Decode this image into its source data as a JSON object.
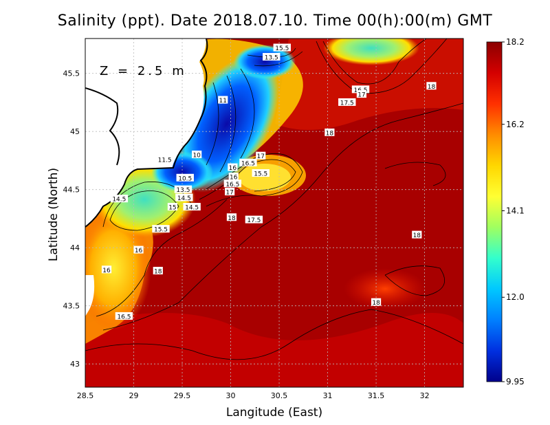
{
  "chart_data": {
    "type": "heatmap",
    "title": "Salinity (ppt). Date 2018.07.10. Time 00(h):00(m) GMT",
    "xlabel": "Langitude (East)",
    "ylabel": "Latitude (North)",
    "annotation": "Z = 2.5 m",
    "xlim": [
      28.5,
      32.4
    ],
    "ylim": [
      42.8,
      45.8
    ],
    "x_ticks": [
      "28.5",
      "29",
      "29.5",
      "30",
      "30.5",
      "31",
      "31.5",
      "32"
    ],
    "y_ticks": [
      "43",
      "43.5",
      "44",
      "44.5",
      "45",
      "45.5"
    ],
    "grid": true,
    "colorbar": {
      "min": 9.95,
      "max": 18.2,
      "tick_labels": [
        "18.2",
        "16.2",
        "14.1",
        "12.0",
        "9.95"
      ],
      "colors": [
        "#8b0000",
        "#d40000",
        "#ff3000",
        "#ff8c00",
        "#ffd700",
        "#ffff33",
        "#a0ff60",
        "#33ffcc",
        "#00c8ff",
        "#0080ff",
        "#0030e0",
        "#00008b"
      ]
    },
    "contour_labels": [
      {
        "text": "15.5",
        "lon": 30.53,
        "lat": 45.72
      },
      {
        "text": "13.5",
        "lon": 30.42,
        "lat": 45.64
      },
      {
        "text": "11",
        "lon": 29.92,
        "lat": 45.27
      },
      {
        "text": "10",
        "lon": 29.65,
        "lat": 44.8
      },
      {
        "text": "11.5",
        "lon": 29.32,
        "lat": 44.76
      },
      {
        "text": "10.5",
        "lon": 29.53,
        "lat": 44.6
      },
      {
        "text": "13.5",
        "lon": 29.51,
        "lat": 44.5
      },
      {
        "text": "14.5",
        "lon": 29.52,
        "lat": 44.43
      },
      {
        "text": "15",
        "lon": 29.4,
        "lat": 44.35
      },
      {
        "text": "14.5",
        "lon": 29.6,
        "lat": 44.35
      },
      {
        "text": "14.5",
        "lon": 28.85,
        "lat": 44.42
      },
      {
        "text": "15.5",
        "lon": 29.28,
        "lat": 44.16
      },
      {
        "text": "16",
        "lon": 29.05,
        "lat": 43.98
      },
      {
        "text": "16",
        "lon": 28.72,
        "lat": 43.81
      },
      {
        "text": "18",
        "lon": 29.25,
        "lat": 43.8
      },
      {
        "text": "16.5",
        "lon": 28.9,
        "lat": 43.41
      },
      {
        "text": "17",
        "lon": 30.31,
        "lat": 44.79
      },
      {
        "text": "16.5",
        "lon": 30.18,
        "lat": 44.73
      },
      {
        "text": "16",
        "lon": 30.02,
        "lat": 44.69
      },
      {
        "text": "15.5",
        "lon": 30.31,
        "lat": 44.64
      },
      {
        "text": "16",
        "lon": 30.03,
        "lat": 44.61
      },
      {
        "text": "16.5",
        "lon": 30.02,
        "lat": 44.55
      },
      {
        "text": "17",
        "lon": 29.99,
        "lat": 44.48
      },
      {
        "text": "18",
        "lon": 30.01,
        "lat": 44.26
      },
      {
        "text": "17.5",
        "lon": 30.24,
        "lat": 44.24
      },
      {
        "text": "18",
        "lon": 31.02,
        "lat": 44.99
      },
      {
        "text": "16.5",
        "lon": 31.34,
        "lat": 45.36
      },
      {
        "text": "17",
        "lon": 31.35,
        "lat": 45.32
      },
      {
        "text": "17.5",
        "lon": 31.2,
        "lat": 45.25
      },
      {
        "text": "18",
        "lon": 32.07,
        "lat": 45.39
      },
      {
        "text": "18",
        "lon": 31.92,
        "lat": 44.11
      },
      {
        "text": "18",
        "lon": 31.5,
        "lat": 43.53
      }
    ]
  }
}
